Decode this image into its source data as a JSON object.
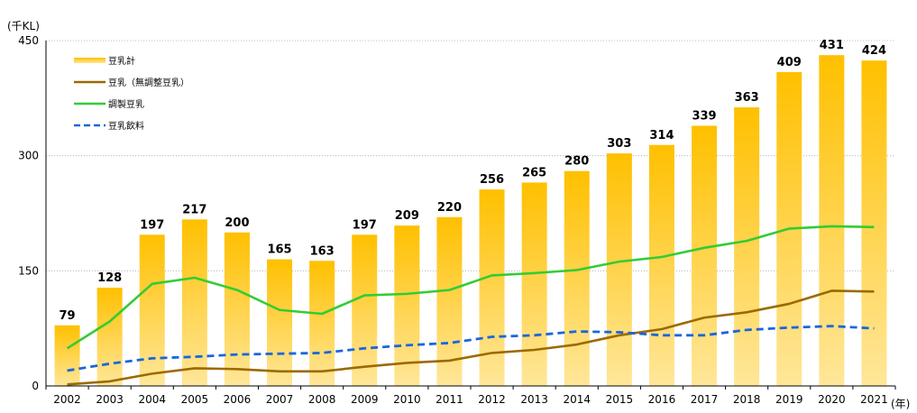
{
  "chart_data": {
    "type": "bar",
    "y_unit": "(千KL)",
    "x_unit": "(年)",
    "ylim": [
      0,
      450
    ],
    "yticks": [
      0,
      150,
      300,
      450
    ],
    "categories": [
      "2002",
      "2003",
      "2004",
      "2005",
      "2006",
      "2007",
      "2008",
      "2009",
      "2010",
      "2011",
      "2012",
      "2013",
      "2014",
      "2015",
      "2016",
      "2017",
      "2018",
      "2019",
      "2020",
      "2021"
    ],
    "series": [
      {
        "name": "豆乳計",
        "kind": "bar",
        "values": [
          79,
          128,
          197,
          217,
          200,
          165,
          163,
          197,
          209,
          220,
          256,
          265,
          280,
          303,
          314,
          339,
          363,
          409,
          431,
          424
        ],
        "color": "#ffc000",
        "color_light": "#ffe79a"
      },
      {
        "name": "豆乳（無調整豆乳）",
        "kind": "line",
        "values": [
          2,
          6,
          16,
          23,
          22,
          19,
          19,
          25,
          30,
          33,
          43,
          47,
          54,
          66,
          74,
          89,
          96,
          107,
          124,
          123
        ],
        "color": "#9c6a00"
      },
      {
        "name": "調製豆乳",
        "kind": "line",
        "values": [
          49,
          84,
          133,
          141,
          125,
          99,
          94,
          118,
          120,
          125,
          144,
          147,
          151,
          162,
          168,
          180,
          189,
          205,
          208,
          207
        ],
        "color": "#33cc33"
      },
      {
        "name": "豆乳飲料",
        "kind": "dashed-line",
        "values": [
          20,
          29,
          36,
          38,
          41,
          42,
          43,
          49,
          53,
          56,
          64,
          66,
          71,
          70,
          66,
          66,
          73,
          76,
          78,
          75
        ],
        "color": "#1a66dd"
      }
    ]
  }
}
